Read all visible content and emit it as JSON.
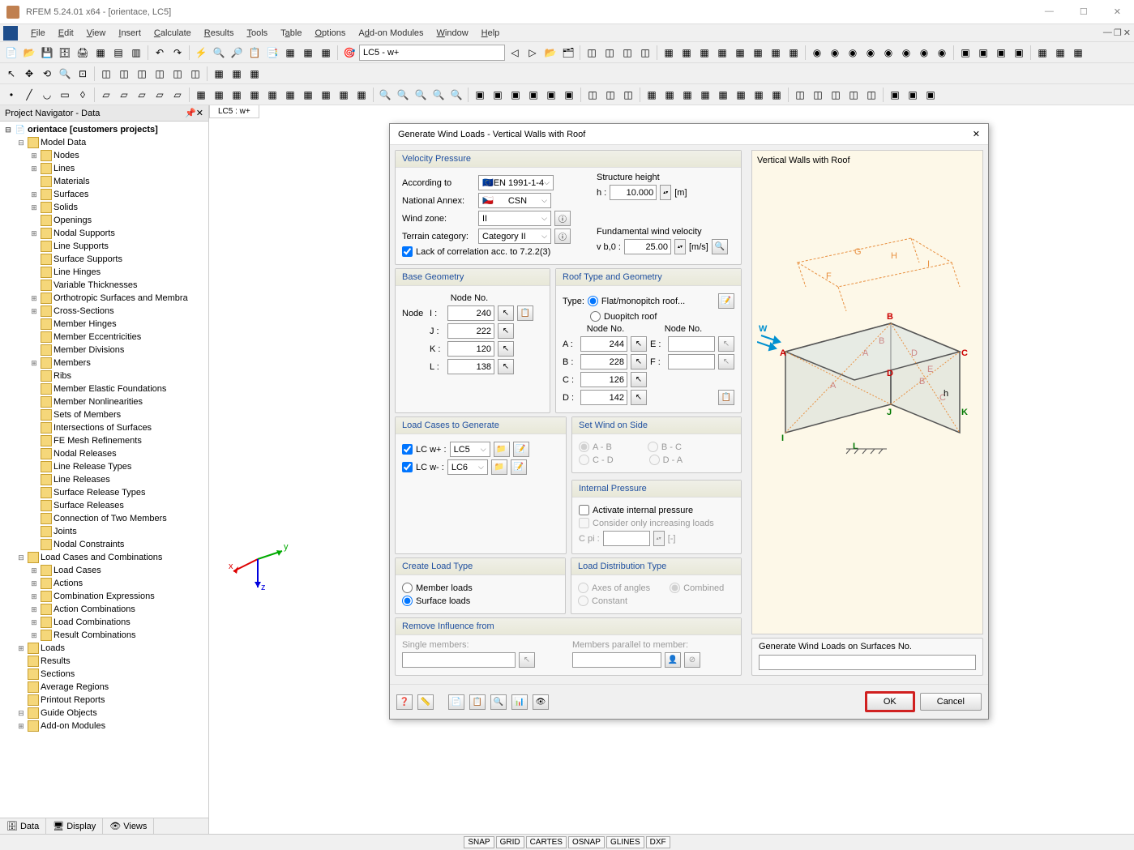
{
  "app": {
    "title": "RFEM 5.24.01 x64 - [orientace, LC5]",
    "menu": [
      "File",
      "Edit",
      "View",
      "Insert",
      "Calculate",
      "Results",
      "Tools",
      "Table",
      "Options",
      "Add-on Modules",
      "Window",
      "Help"
    ],
    "lc_dropdown": "LC5 - w+",
    "view_tab": "LC5 : w+",
    "nav_title": "Project Navigator - Data",
    "status": [
      "SNAP",
      "GRID",
      "CARTES",
      "OSNAP",
      "GLINES",
      "DXF"
    ],
    "nav_tabs": [
      "Data",
      "Display",
      "Views"
    ]
  },
  "tree": {
    "root": "orientace [customers projects]",
    "model_data": "Model Data",
    "items": [
      "Nodes",
      "Lines",
      "Materials",
      "Surfaces",
      "Solids",
      "Openings",
      "Nodal Supports",
      "Line Supports",
      "Surface Supports",
      "Line Hinges",
      "Variable Thicknesses",
      "Orthotropic Surfaces and Membra",
      "Cross-Sections",
      "Member Hinges",
      "Member Eccentricities",
      "Member Divisions",
      "Members",
      "Ribs",
      "Member Elastic Foundations",
      "Member Nonlinearities",
      "Sets of Members",
      "Intersections of Surfaces",
      "FE Mesh Refinements",
      "Nodal Releases",
      "Line Release Types",
      "Line Releases",
      "Surface Release Types",
      "Surface Releases",
      "Connection of Two Members",
      "Joints",
      "Nodal Constraints"
    ],
    "lcc": "Load Cases and Combinations",
    "lcc_items": [
      "Load Cases",
      "Actions",
      "Combination Expressions",
      "Action Combinations",
      "Load Combinations",
      "Result Combinations"
    ],
    "bottom": [
      "Loads",
      "Results",
      "Sections",
      "Average Regions",
      "Printout Reports",
      "Guide Objects",
      "Add-on Modules"
    ]
  },
  "dialog": {
    "title": "Generate Wind Loads  -  Vertical Walls with Roof",
    "velocity_pressure": {
      "title": "Velocity Pressure",
      "according_to_lbl": "According to",
      "according_to": "EN 1991-1-4",
      "annex_lbl": "National Annex:",
      "annex": "CSN",
      "wind_zone_lbl": "Wind zone:",
      "wind_zone": "II",
      "terrain_lbl": "Terrain category:",
      "terrain": "Category II",
      "lack_corr": "Lack of correlation acc. to 7.2.2(3)",
      "struct_height_lbl": "Structure height",
      "h_lbl": "h :",
      "h_val": "10.000",
      "h_unit": "[m]",
      "fund_vel_lbl": "Fundamental wind velocity",
      "vb0_lbl": "v b,0 :",
      "vb0_val": "25.00",
      "vb0_unit": "[m/s]"
    },
    "base_geom": {
      "title": "Base Geometry",
      "node_lbl": "Node",
      "node_no": "Node No.",
      "I": "240",
      "J": "222",
      "K": "120",
      "L": "138"
    },
    "roof": {
      "title": "Roof Type and Geometry",
      "type_lbl": "Type:",
      "flat": "Flat/monopitch roof...",
      "duo": "Duopitch roof",
      "node_no": "Node No.",
      "A": "244",
      "B": "228",
      "C": "126",
      "D": "142",
      "E_lbl": "E :",
      "F_lbl": "F :"
    },
    "lc_gen": {
      "title": "Load Cases to Generate",
      "wplus": "LC w+ :",
      "wplus_val": "LC5",
      "wminus": "LC w- :",
      "wminus_val": "LC6"
    },
    "wind_side": {
      "title": "Set Wind on Side",
      "ab": "A - B",
      "bc": "B - C",
      "cd": "C - D",
      "da": "D - A"
    },
    "internal": {
      "title": "Internal Pressure",
      "activate": "Activate internal pressure",
      "consider": "Consider only increasing loads",
      "cpi_lbl": "C pi :",
      "cpi_unit": "[-]"
    },
    "create_load": {
      "title": "Create Load Type",
      "member": "Member loads",
      "surface": "Surface loads"
    },
    "load_dist": {
      "title": "Load Distribution Type",
      "axes": "Axes of angles",
      "combined": "Combined",
      "constant": "Constant"
    },
    "remove": {
      "title": "Remove Influence from",
      "single": "Single members:",
      "parallel": "Members parallel to member:"
    },
    "gen_surfaces": "Generate Wind Loads on Surfaces No.",
    "preview_title": "Vertical Walls with Roof",
    "ok": "OK",
    "cancel": "Cancel"
  }
}
